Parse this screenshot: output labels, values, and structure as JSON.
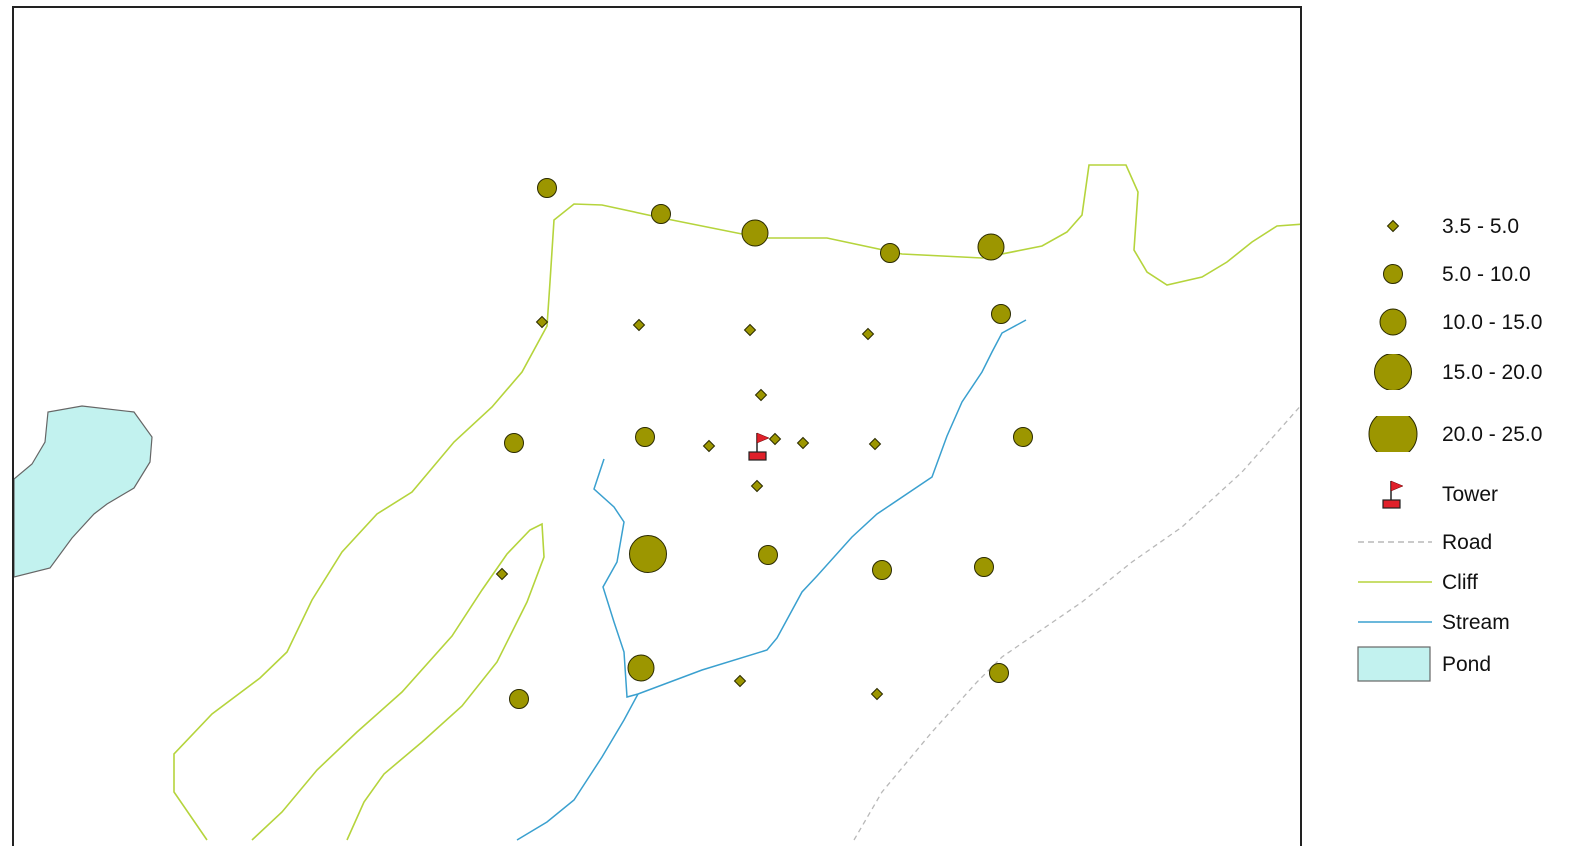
{
  "colors": {
    "sample_fill": "#9c9600",
    "sample_stroke": "#2a2a00",
    "cliff": "#b5d43c",
    "stream": "#3aa0cf",
    "road": "#b8b8b8",
    "pond_fill": "#c2f2ef",
    "pond_stroke": "#666666",
    "tower": "#e0202a"
  },
  "legend": {
    "items": [
      {
        "label": "3.5 - 5.0",
        "kind": "point",
        "class": 1
      },
      {
        "label": "5.0 - 10.0",
        "kind": "point",
        "class": 2
      },
      {
        "label": "10.0 - 15.0",
        "kind": "point",
        "class": 3
      },
      {
        "label": "15.0 - 20.0",
        "kind": "point",
        "class": 4
      },
      {
        "label": "20.0 - 25.0",
        "kind": "point",
        "class": 5
      },
      {
        "label": "Tower",
        "kind": "tower-icon"
      },
      {
        "label": "Road",
        "kind": "road-line"
      },
      {
        "label": "Cliff",
        "kind": "cliff-line"
      },
      {
        "label": "Stream",
        "kind": "stream-line"
      },
      {
        "label": "Pond",
        "kind": "pond-area"
      }
    ]
  },
  "sample_classes": [
    {
      "class": 1,
      "range": "3.5 - 5.0"
    },
    {
      "class": 2,
      "range": "5.0 - 10.0"
    },
    {
      "class": 3,
      "range": "10.0 - 15.0"
    },
    {
      "class": 4,
      "range": "15.0 - 20.0"
    },
    {
      "class": 5,
      "range": "20.0 - 25.0"
    }
  ],
  "icons": {
    "tower": "tower-flag-icon",
    "pond": "pond-swatch-icon"
  }
}
